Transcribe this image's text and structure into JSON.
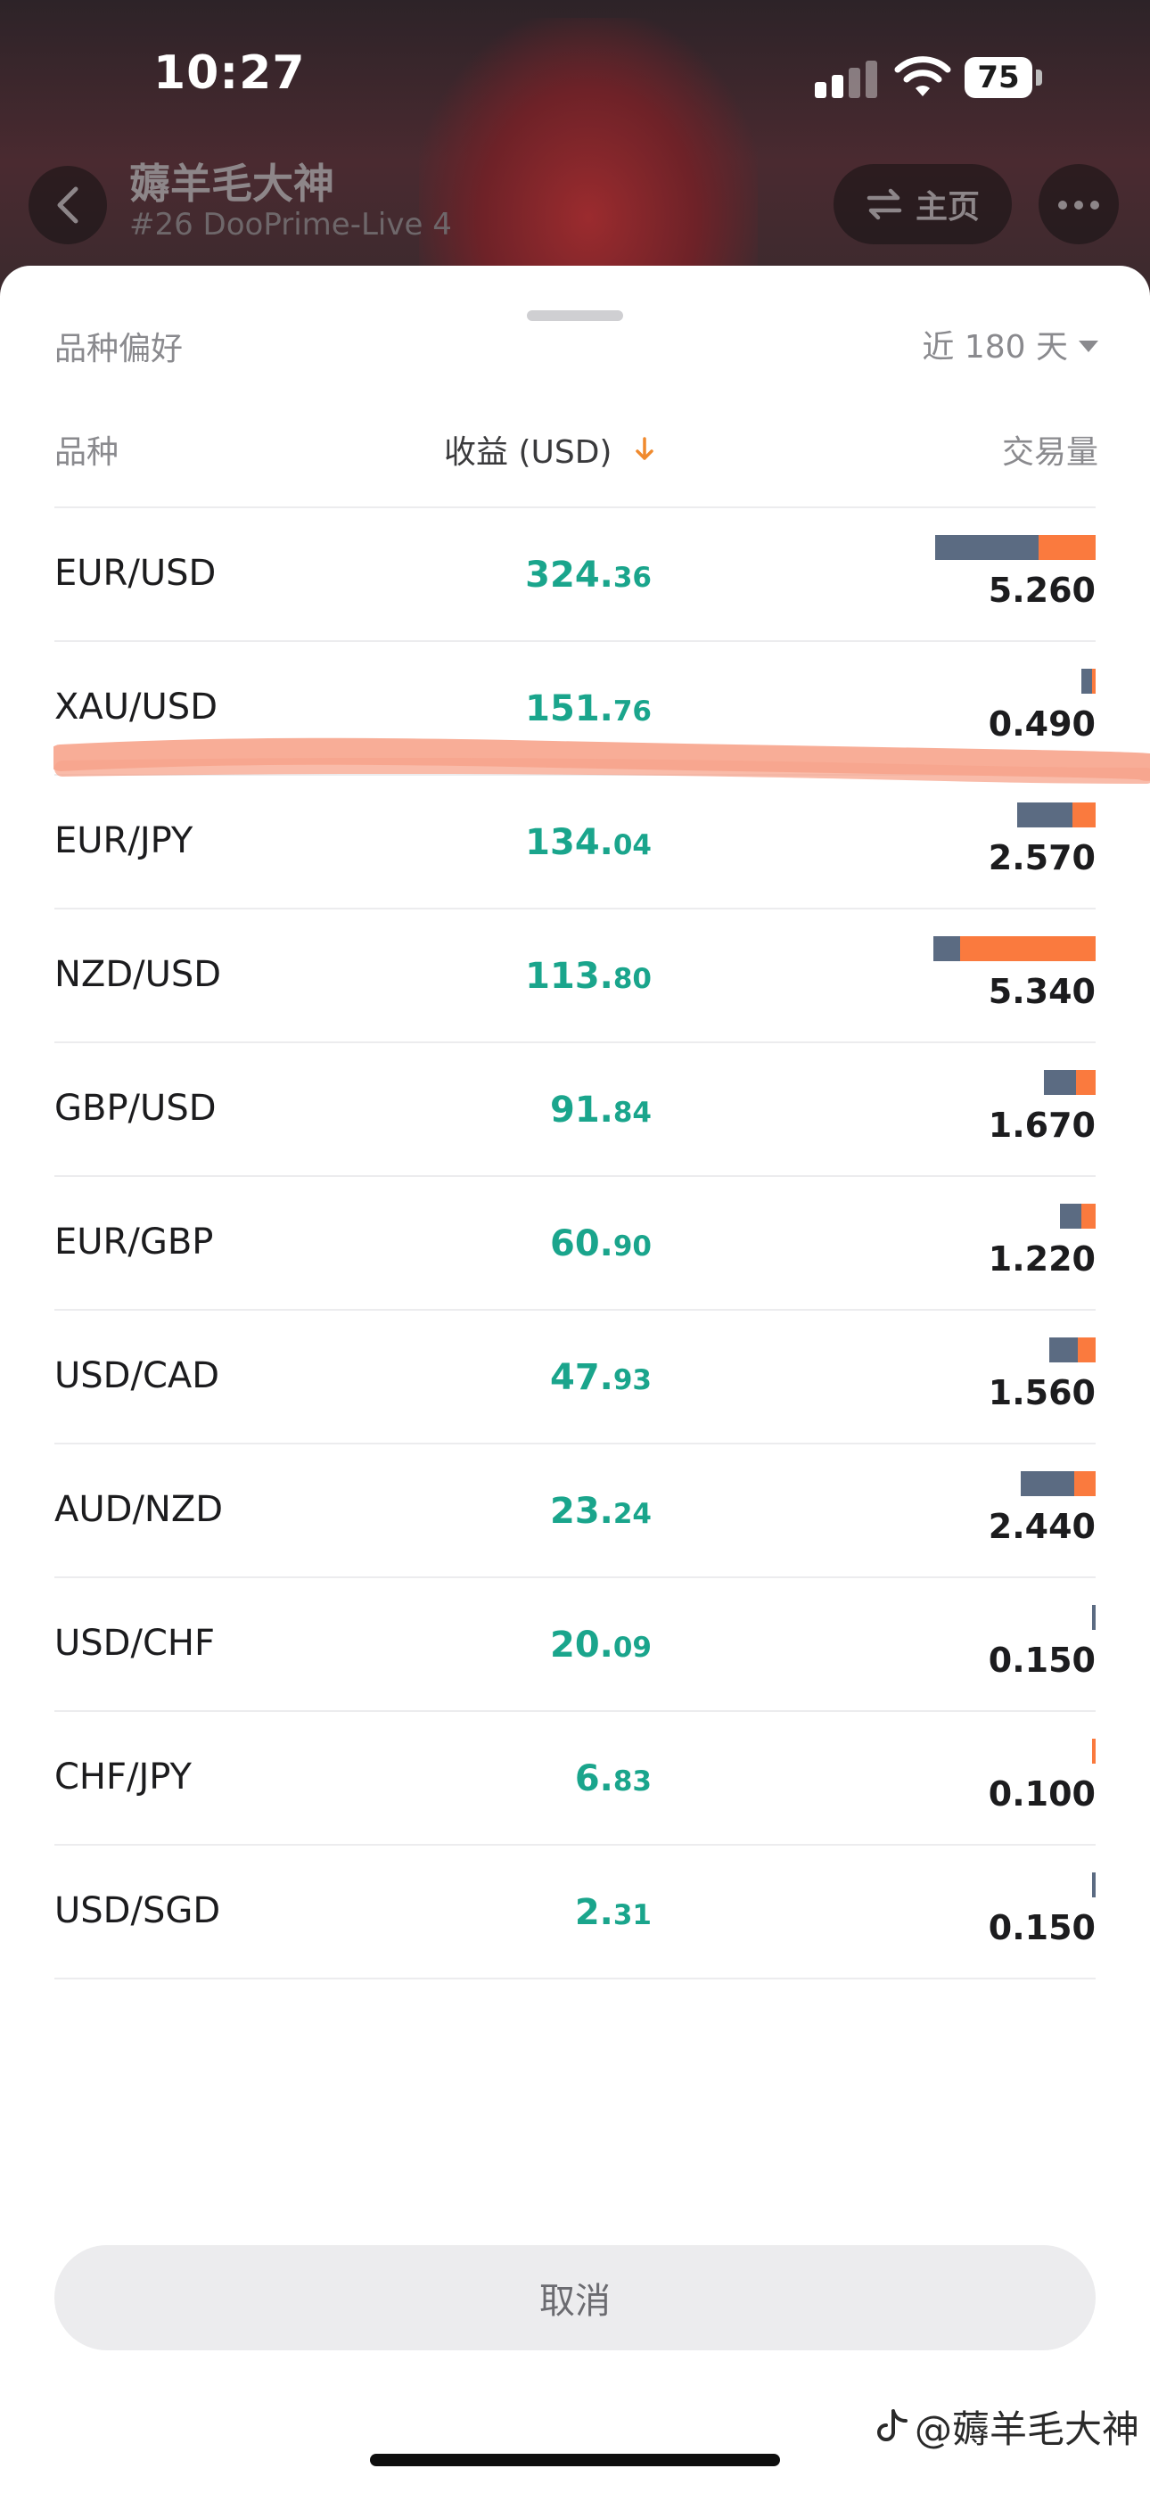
{
  "status_bar": {
    "time": "10:27",
    "battery": "75",
    "icons": [
      "cellular-signal-icon",
      "wifi-icon",
      "battery-icon"
    ]
  },
  "header": {
    "title": "薅羊毛大神",
    "subtitle": "#26 DooPrime-Live 4",
    "home_label": "主页",
    "back_icon": "chevron-left-icon",
    "home_icon": "swap-arrows-icon",
    "more_icon": "more-dots-icon"
  },
  "sheet": {
    "title": "品种偏好",
    "range_label": "近 180 天",
    "columns": {
      "symbol": "品种",
      "profit": "收益 (USD)",
      "volume": "交易量"
    },
    "sort_icon": "arrow-down-icon",
    "colors": {
      "profit": "#1aa58c",
      "volume_bar_a": "#5b6b82",
      "volume_bar_b": "#fa7a3e"
    },
    "rows": [
      {
        "symbol": "EUR/USD",
        "profit_int": "324.",
        "profit_dec": "36",
        "volume": "5.260",
        "bar_a": 2.9,
        "bar_b": 1.6
      },
      {
        "symbol": "XAU/USD",
        "profit_int": "151.",
        "profit_dec": "76",
        "volume": "0.490",
        "bar_a": 0.3,
        "bar_b": 0.1
      },
      {
        "symbol": "EUR/JPY",
        "profit_int": "134.",
        "profit_dec": "04",
        "volume": "2.570",
        "bar_a": 1.55,
        "bar_b": 0.65
      },
      {
        "symbol": "NZD/USD",
        "profit_int": "113.",
        "profit_dec": "80",
        "volume": "5.340",
        "bar_a": 0.75,
        "bar_b": 3.8
      },
      {
        "symbol": "GBP/USD",
        "profit_int": "91.",
        "profit_dec": "84",
        "volume": "1.670",
        "bar_a": 0.9,
        "bar_b": 0.55
      },
      {
        "symbol": "EUR/GBP",
        "profit_int": "60.",
        "profit_dec": "90",
        "volume": "1.220",
        "bar_a": 0.6,
        "bar_b": 0.4
      },
      {
        "symbol": "USD/CAD",
        "profit_int": "47.",
        "profit_dec": "93",
        "volume": "1.560",
        "bar_a": 0.8,
        "bar_b": 0.5
      },
      {
        "symbol": "AUD/NZD",
        "profit_int": "23.",
        "profit_dec": "24",
        "volume": "2.440",
        "bar_a": 1.5,
        "bar_b": 0.6
      },
      {
        "symbol": "USD/CHF",
        "profit_int": "20.",
        "profit_dec": "09",
        "volume": "0.150",
        "bar_a": 0.1,
        "bar_b": 0
      },
      {
        "symbol": "CHF/JPY",
        "profit_int": "6.",
        "profit_dec": "83",
        "volume": "0.100",
        "bar_a": 0,
        "bar_b": 0.1
      },
      {
        "symbol": "USD/SGD",
        "profit_int": "2.",
        "profit_dec": "31",
        "volume": "0.150",
        "bar_a": 0.1,
        "bar_b": 0
      }
    ],
    "cancel_label": "取消"
  },
  "watermark": "@薅羊毛大神"
}
